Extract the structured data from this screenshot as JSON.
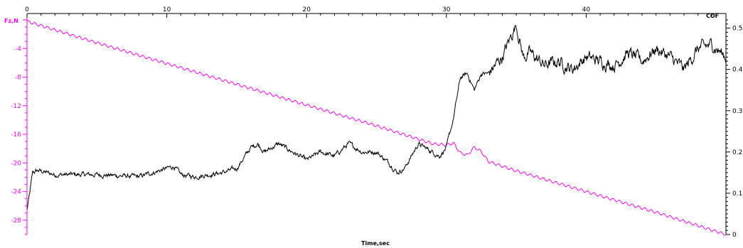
{
  "chart_data": {
    "type": "line",
    "xlabel": "Time,sec",
    "ylabel_left": "Fz,N",
    "ylabel_right": "COF",
    "x_range": [
      0,
      50
    ],
    "x_ticks": [
      0,
      10,
      20,
      30,
      40
    ],
    "y_left_range": [
      -30,
      0
    ],
    "y_left_ticks": [
      -4,
      -8,
      -12,
      -16,
      -20,
      -24,
      -28
    ],
    "y_right_range": [
      0,
      0.52
    ],
    "y_right_ticks": [
      0,
      0.1,
      0.2,
      0.3,
      0.4,
      0.5
    ],
    "grid": false,
    "legend": "none",
    "colors": {
      "fz_series": "#ff00ff",
      "cof_series": "#000000",
      "left_axis": "#ff00ff",
      "right_axis": "#000000",
      "top_axis": "#000000"
    },
    "series": [
      {
        "key": "fz",
        "axis": "left",
        "x": [
          0,
          5,
          10,
          15,
          20,
          25,
          29,
          30,
          30.5,
          31,
          31.5,
          32,
          32.5,
          33,
          35,
          40,
          45,
          50
        ],
        "y": [
          -0.2,
          -3.2,
          -6.1,
          -9.0,
          -11.9,
          -14.8,
          -17.3,
          -17.5,
          -17.2,
          -18.6,
          -18.9,
          -17.8,
          -18.4,
          -19.8,
          -21.1,
          -24.0,
          -26.9,
          -30.0
        ]
      },
      {
        "key": "cof",
        "axis": "right",
        "x": [
          0,
          0.2,
          0.4,
          0.8,
          2,
          5,
          8,
          10,
          10.5,
          11,
          12,
          13,
          14,
          15,
          16,
          16.5,
          17,
          18,
          19,
          20,
          21,
          22,
          23,
          24,
          25,
          26,
          26.5,
          27,
          28,
          29,
          29.5,
          30,
          30.5,
          31,
          31.5,
          32,
          32.5,
          33,
          34,
          34.5,
          35,
          35.5,
          36,
          37,
          38,
          39,
          40,
          41,
          42,
          43,
          44,
          45,
          46,
          47,
          48,
          49,
          50
        ],
        "y": [
          0.06,
          0.1,
          0.15,
          0.155,
          0.145,
          0.145,
          0.14,
          0.16,
          0.165,
          0.145,
          0.14,
          0.145,
          0.15,
          0.16,
          0.21,
          0.22,
          0.2,
          0.22,
          0.2,
          0.18,
          0.2,
          0.19,
          0.22,
          0.2,
          0.2,
          0.17,
          0.15,
          0.16,
          0.22,
          0.2,
          0.19,
          0.21,
          0.28,
          0.38,
          0.39,
          0.35,
          0.39,
          0.39,
          0.43,
          0.47,
          0.51,
          0.43,
          0.44,
          0.41,
          0.42,
          0.4,
          0.43,
          0.42,
          0.41,
          0.44,
          0.42,
          0.45,
          0.43,
          0.4,
          0.45,
          0.46,
          0.43
        ]
      }
    ]
  }
}
